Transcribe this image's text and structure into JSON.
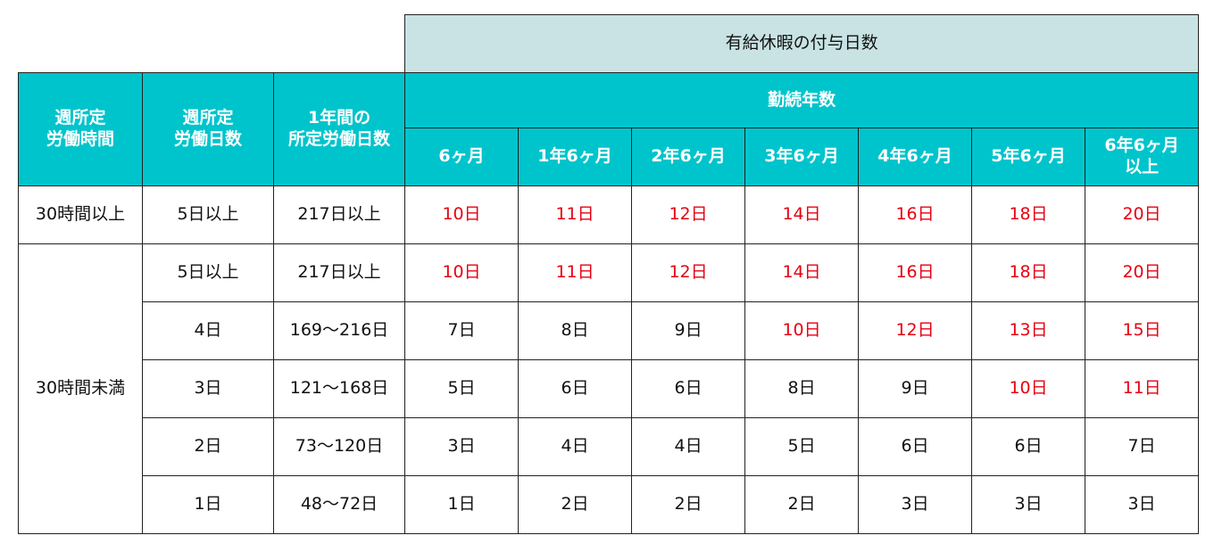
{
  "header": {
    "group_title": "有給休暇の付与日数",
    "weekly_hours_label": "週所定\n労働時間",
    "weekly_days_label": "週所定\n労働日数",
    "annual_days_label": "1年間の\n所定労働日数",
    "tenure_label": "勤続年数",
    "tenure_columns": [
      "6ヶ月",
      "1年6ヶ月",
      "2年6ヶ月",
      "3年6ヶ月",
      "4年6ヶ月",
      "5年6ヶ月",
      "6年6ヶ月\n以上"
    ]
  },
  "rows": [
    {
      "hours": "30時間以上",
      "days": "5日以上",
      "annual": "217日以上",
      "values": [
        "10日",
        "11日",
        "12日",
        "14日",
        "16日",
        "18日",
        "20日"
      ],
      "highlight": [
        true,
        true,
        true,
        true,
        true,
        true,
        true
      ]
    },
    {
      "hours": "30時間未満",
      "days": "5日以上",
      "annual": "217日以上",
      "values": [
        "10日",
        "11日",
        "12日",
        "14日",
        "16日",
        "18日",
        "20日"
      ],
      "highlight": [
        true,
        true,
        true,
        true,
        true,
        true,
        true
      ]
    },
    {
      "days": "4日",
      "annual": "169〜216日",
      "values": [
        "7日",
        "8日",
        "9日",
        "10日",
        "12日",
        "13日",
        "15日"
      ],
      "highlight": [
        false,
        false,
        false,
        true,
        true,
        true,
        true
      ]
    },
    {
      "days": "3日",
      "annual": "121〜168日",
      "values": [
        "5日",
        "6日",
        "6日",
        "8日",
        "9日",
        "10日",
        "11日"
      ],
      "highlight": [
        false,
        false,
        false,
        false,
        false,
        true,
        true
      ]
    },
    {
      "days": "2日",
      "annual": "73〜120日",
      "values": [
        "3日",
        "4日",
        "4日",
        "5日",
        "6日",
        "6日",
        "7日"
      ],
      "highlight": [
        false,
        false,
        false,
        false,
        false,
        false,
        false
      ]
    },
    {
      "days": "1日",
      "annual": "48〜72日",
      "values": [
        "1日",
        "2日",
        "2日",
        "2日",
        "3日",
        "3日",
        "3日"
      ],
      "highlight": [
        false,
        false,
        false,
        false,
        false,
        false,
        false
      ]
    }
  ],
  "colors": {
    "teal_header": "#00c4cc",
    "light_header": "#c9e3e4",
    "highlight_text": "#e60012"
  }
}
